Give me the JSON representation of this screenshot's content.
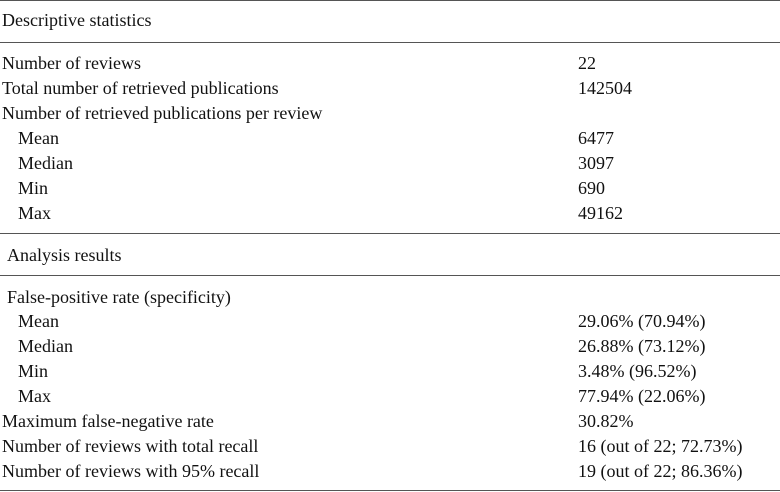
{
  "sections": [
    {
      "title": "Descriptive statistics",
      "rows": [
        {
          "label": "Number of reviews",
          "value": "22"
        },
        {
          "label": "Total number of retrieved publications",
          "value": "142504"
        },
        {
          "label": "Number of retrieved publications per review",
          "value": ""
        },
        {
          "label": "Mean",
          "value": "6477"
        },
        {
          "label": "Median",
          "value": "3097"
        },
        {
          "label": "Min",
          "value": "690"
        },
        {
          "label": "Max",
          "value": "49162"
        }
      ]
    },
    {
      "title": "Analysis results",
      "rows": [
        {
          "label": "False-positive rate (specificity)",
          "value": ""
        },
        {
          "label": "Mean",
          "value": "29.06% (70.94%)"
        },
        {
          "label": "Median",
          "value": "26.88% (73.12%)"
        },
        {
          "label": "Min",
          "value": "3.48% (96.52%)"
        },
        {
          "label": "Max",
          "value": "77.94% (22.06%)"
        },
        {
          "label": "Maximum false-negative rate",
          "value": "30.82%"
        },
        {
          "label": "Number of reviews with total recall",
          "value": "16 (out of 22; 72.73%)"
        },
        {
          "label": "Number of reviews with 95% recall",
          "value": "19 (out of 22; 86.36%)"
        }
      ]
    }
  ]
}
